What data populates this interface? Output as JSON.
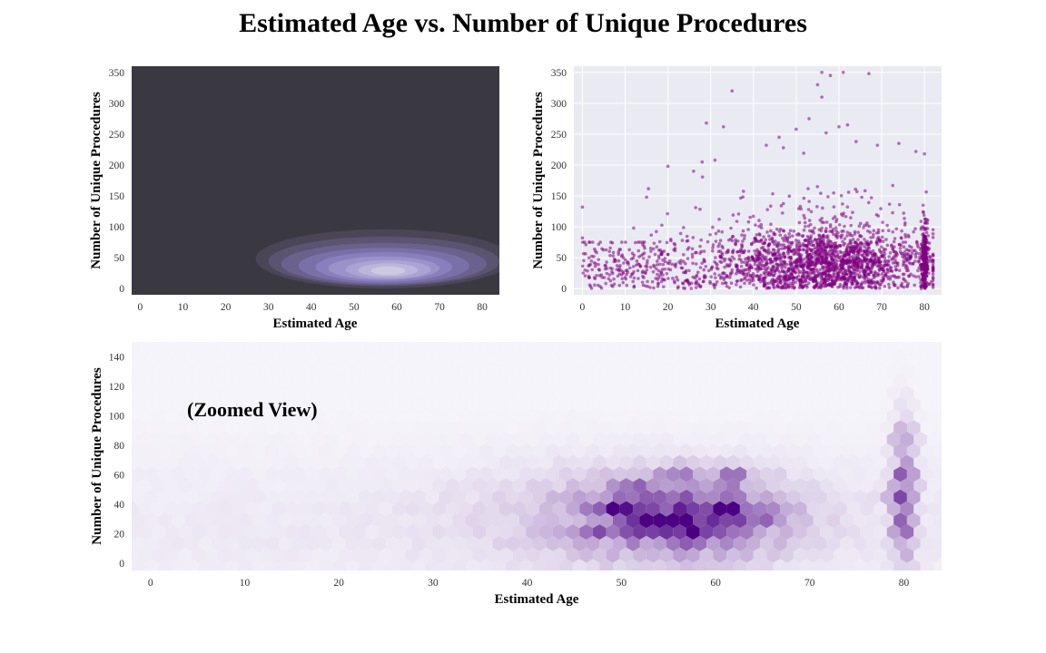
{
  "figure": {
    "title": "Estimated Age vs. Number of Unique Procedures"
  },
  "chart_data": [
    {
      "type": "kde-contour",
      "panel": "top-left",
      "xlabel": "Estimated Age",
      "ylabel": "Number of Unique Procedures",
      "xticks": [
        0,
        10,
        20,
        30,
        40,
        50,
        60,
        70,
        80
      ],
      "yticks": [
        0,
        50,
        100,
        150,
        200,
        250,
        300,
        350
      ],
      "xlim": [
        -2,
        84
      ],
      "ylim": [
        -10,
        360
      ],
      "background": "#3a3840",
      "palette": [
        "#4a4656",
        "#5a5470",
        "#6a628c",
        "#7a70a8",
        "#8a7fbe",
        "#9b92c9",
        "#aba3d3",
        "#bcb6db",
        "#cdc9e3"
      ],
      "density_peak": {
        "x": 58,
        "y": 30
      },
      "contour_levels": [
        {
          "cx": 57,
          "cy": 48,
          "rx": 30,
          "ry": 48
        },
        {
          "cx": 57,
          "cy": 44,
          "rx": 27,
          "ry": 40
        },
        {
          "cx": 57,
          "cy": 40,
          "rx": 24,
          "ry": 34
        },
        {
          "cx": 57,
          "cy": 37,
          "rx": 20,
          "ry": 29
        },
        {
          "cx": 57,
          "cy": 35,
          "rx": 16,
          "ry": 24
        },
        {
          "cx": 57,
          "cy": 33,
          "rx": 13,
          "ry": 19
        },
        {
          "cx": 58,
          "cy": 31,
          "rx": 10,
          "ry": 15
        },
        {
          "cx": 58,
          "cy": 30,
          "rx": 7,
          "ry": 11
        },
        {
          "cx": 58,
          "cy": 29,
          "rx": 4,
          "ry": 7
        }
      ]
    },
    {
      "type": "scatter",
      "panel": "top-right",
      "xlabel": "Estimated Age",
      "ylabel": "Number of Unique Procedures",
      "xticks": [
        0,
        10,
        20,
        30,
        40,
        50,
        60,
        70,
        80
      ],
      "yticks": [
        0,
        50,
        100,
        150,
        200,
        250,
        300,
        350
      ],
      "xlim": [
        -2,
        84
      ],
      "ylim": [
        -10,
        360
      ],
      "grid": true,
      "color": "#800080",
      "outliers": [
        {
          "x": 35,
          "y": 320
        },
        {
          "x": 55,
          "y": 330
        },
        {
          "x": 56,
          "y": 310
        },
        {
          "x": 58,
          "y": 345
        },
        {
          "x": 61,
          "y": 350
        },
        {
          "x": 67,
          "y": 348
        },
        {
          "x": 56,
          "y": 350
        },
        {
          "x": 29,
          "y": 268
        },
        {
          "x": 33,
          "y": 262
        },
        {
          "x": 53,
          "y": 275
        },
        {
          "x": 62,
          "y": 265
        },
        {
          "x": 20,
          "y": 198
        },
        {
          "x": 28,
          "y": 205
        },
        {
          "x": 43,
          "y": 232
        },
        {
          "x": 46,
          "y": 245
        },
        {
          "x": 50,
          "y": 258
        },
        {
          "x": 74,
          "y": 235
        },
        {
          "x": 0,
          "y": 132
        },
        {
          "x": 15,
          "y": 148
        },
        {
          "x": 12,
          "y": 98
        },
        {
          "x": 0,
          "y": 82
        },
        {
          "x": 47,
          "y": 228
        },
        {
          "x": 57,
          "y": 252
        },
        {
          "x": 60,
          "y": 262
        },
        {
          "x": 64,
          "y": 238
        },
        {
          "x": 69,
          "y": 232
        },
        {
          "x": 78,
          "y": 222
        },
        {
          "x": 80,
          "y": 218
        },
        {
          "x": 31,
          "y": 208
        },
        {
          "x": 26,
          "y": 190
        }
      ]
    },
    {
      "type": "hexbin",
      "panel": "bottom",
      "annotation": "(Zoomed View)",
      "xlabel": "Estimated Age",
      "ylabel": "Number of Unique Procedures",
      "xticks": [
        0,
        10,
        20,
        30,
        40,
        50,
        60,
        70,
        80
      ],
      "yticks": [
        0,
        20,
        40,
        60,
        80,
        100,
        120,
        140
      ],
      "xlim": [
        -2,
        84
      ],
      "ylim": [
        -5,
        150
      ],
      "colormap_low": "#f7f6fb",
      "colormap_high": "#4b0082",
      "hot_bins": [
        {
          "x": 61,
          "y": 32,
          "v": 1.0
        },
        {
          "x": 56,
          "y": 32,
          "v": 0.9
        },
        {
          "x": 57,
          "y": 28,
          "v": 0.85
        },
        {
          "x": 61,
          "y": 38,
          "v": 0.85
        },
        {
          "x": 57,
          "y": 63,
          "v": 0.8
        },
        {
          "x": 47,
          "y": 20,
          "v": 0.8
        },
        {
          "x": 58,
          "y": 20,
          "v": 0.75
        },
        {
          "x": 62,
          "y": 58,
          "v": 0.7
        },
        {
          "x": 53,
          "y": 30,
          "v": 0.6
        },
        {
          "x": 51,
          "y": 33,
          "v": 0.6
        },
        {
          "x": 52,
          "y": 26,
          "v": 0.6
        },
        {
          "x": 49,
          "y": 37,
          "v": 0.55
        },
        {
          "x": 65,
          "y": 32,
          "v": 0.6
        },
        {
          "x": 80,
          "y": 25,
          "v": 0.65
        },
        {
          "x": 80,
          "y": 57,
          "v": 0.6
        },
        {
          "x": 79,
          "y": 45,
          "v": 0.55
        },
        {
          "x": 80,
          "y": 87,
          "v": 0.55
        },
        {
          "x": 55,
          "y": 57,
          "v": 0.55
        },
        {
          "x": 51,
          "y": 54,
          "v": 0.55
        },
        {
          "x": 48,
          "y": 37,
          "v": 0.5
        }
      ]
    }
  ]
}
